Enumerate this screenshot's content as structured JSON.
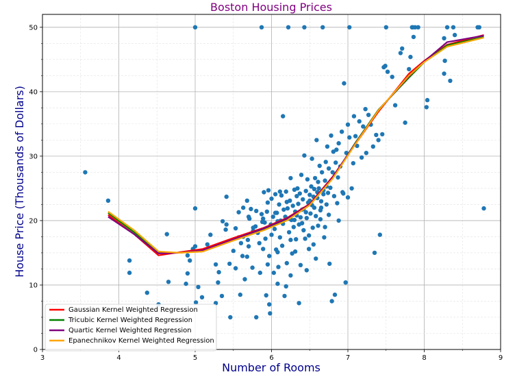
{
  "chart_data": {
    "type": "scatter",
    "title": "Boston Housing Prices",
    "xlabel": "Number of Rooms",
    "ylabel": "House Price (Thousands of Dollars)",
    "xlim": [
      3,
      9
    ],
    "ylim": [
      0,
      52
    ],
    "xticks": [
      "3",
      "4",
      "5",
      "6",
      "7",
      "8",
      "9"
    ],
    "yticks": [
      "0",
      "10",
      "20",
      "30",
      "40",
      "50"
    ],
    "grid": true,
    "legend_position": "lower-left",
    "colors": {
      "title": "#800080",
      "axis_label": "#00008b",
      "scatter": "#1f77b4"
    },
    "scatter_points": [
      [
        3.56,
        27.5
      ],
      [
        3.86,
        23.1
      ],
      [
        4.14,
        13.8
      ],
      [
        4.14,
        11.9
      ],
      [
        4.37,
        8.8
      ],
      [
        4.52,
        7.0
      ],
      [
        4.63,
        17.9
      ],
      [
        4.65,
        10.5
      ],
      [
        4.88,
        10.2
      ],
      [
        4.9,
        14.6
      ],
      [
        4.9,
        11.8
      ],
      [
        4.93,
        13.8
      ],
      [
        4.97,
        15.6
      ],
      [
        5.0,
        21.9
      ],
      [
        5.0,
        16.0
      ],
      [
        5.0,
        50.0
      ],
      [
        5.01,
        7.3
      ],
      [
        5.04,
        9.7
      ],
      [
        5.09,
        8.1
      ],
      [
        5.16,
        16.3
      ],
      [
        5.2,
        17.8
      ],
      [
        5.27,
        13.2
      ],
      [
        5.27,
        7.2
      ],
      [
        5.3,
        10.4
      ],
      [
        5.31,
        12.0
      ],
      [
        5.35,
        8.3
      ],
      [
        5.36,
        19.9
      ],
      [
        5.4,
        18.6
      ],
      [
        5.41,
        23.7
      ],
      [
        5.41,
        19.4
      ],
      [
        5.45,
        13.3
      ],
      [
        5.46,
        5.0
      ],
      [
        5.5,
        15.3
      ],
      [
        5.53,
        18.8
      ],
      [
        5.57,
        17.4
      ],
      [
        5.57,
        21.3
      ],
      [
        5.59,
        8.5
      ],
      [
        5.6,
        16.5
      ],
      [
        5.62,
        14.5
      ],
      [
        5.63,
        22.0
      ],
      [
        5.65,
        10.9
      ],
      [
        5.68,
        23.1
      ],
      [
        5.69,
        17.0
      ],
      [
        5.7,
        16.0
      ],
      [
        5.71,
        20.3
      ],
      [
        5.73,
        21.8
      ],
      [
        5.76,
        18.4
      ],
      [
        5.79,
        19.1
      ],
      [
        5.8,
        5.0
      ],
      [
        5.82,
        18.1
      ],
      [
        5.85,
        11.9
      ],
      [
        5.87,
        21.0
      ],
      [
        5.87,
        50.0
      ],
      [
        5.89,
        20.3
      ],
      [
        5.9,
        24.4
      ],
      [
        5.91,
        19.7
      ],
      [
        5.93,
        8.4
      ],
      [
        5.94,
        21.4
      ],
      [
        5.95,
        13.2
      ],
      [
        5.96,
        24.7
      ],
      [
        5.97,
        14.5
      ],
      [
        5.98,
        5.6
      ],
      [
        5.99,
        19.4
      ],
      [
        6.0,
        17.8
      ],
      [
        6.0,
        23.4
      ],
      [
        6.02,
        20.6
      ],
      [
        6.03,
        11.9
      ],
      [
        6.04,
        18.7
      ],
      [
        6.05,
        24.1
      ],
      [
        6.06,
        15.5
      ],
      [
        6.07,
        21.2
      ],
      [
        6.08,
        19.9
      ],
      [
        6.09,
        12.8
      ],
      [
        6.1,
        22.5
      ],
      [
        6.11,
        17.4
      ],
      [
        6.12,
        20.0
      ],
      [
        6.13,
        23.9
      ],
      [
        6.14,
        16.1
      ],
      [
        6.15,
        36.2
      ],
      [
        6.16,
        21.7
      ],
      [
        6.17,
        8.3
      ],
      [
        6.18,
        20.6
      ],
      [
        6.19,
        24.5
      ],
      [
        6.2,
        13.4
      ],
      [
        6.21,
        21.9
      ],
      [
        6.22,
        50.0
      ],
      [
        6.23,
        18.2
      ],
      [
        6.24,
        23.1
      ],
      [
        6.25,
        26.6
      ],
      [
        6.26,
        20.1
      ],
      [
        6.27,
        14.9
      ],
      [
        6.28,
        22.3
      ],
      [
        6.29,
        19.0
      ],
      [
        6.3,
        24.8
      ],
      [
        6.31,
        21.4
      ],
      [
        6.32,
        17.1
      ],
      [
        6.33,
        20.8
      ],
      [
        6.34,
        25.0
      ],
      [
        6.35,
        22.6
      ],
      [
        6.36,
        7.2
      ],
      [
        6.37,
        24.2
      ],
      [
        6.38,
        20.5
      ],
      [
        6.39,
        27.1
      ],
      [
        6.4,
        19.6
      ],
      [
        6.41,
        23.3
      ],
      [
        6.42,
        21.8
      ],
      [
        6.43,
        30.1
      ],
      [
        6.44,
        17.2
      ],
      [
        6.45,
        24.6
      ],
      [
        6.46,
        20.4
      ],
      [
        6.47,
        26.4
      ],
      [
        6.48,
        22.8
      ],
      [
        6.49,
        15.6
      ],
      [
        6.5,
        24.0
      ],
      [
        6.51,
        21.1
      ],
      [
        6.52,
        25.3
      ],
      [
        6.53,
        29.6
      ],
      [
        6.54,
        18.9
      ],
      [
        6.55,
        23.7
      ],
      [
        6.56,
        22.0
      ],
      [
        6.57,
        26.6
      ],
      [
        6.58,
        20.7
      ],
      [
        6.59,
        32.5
      ],
      [
        6.6,
        24.4
      ],
      [
        6.61,
        19.2
      ],
      [
        6.62,
        25.0
      ],
      [
        6.63,
        28.5
      ],
      [
        6.64,
        21.6
      ],
      [
        6.65,
        23.0
      ],
      [
        6.66,
        27.5
      ],
      [
        6.67,
        50.0
      ],
      [
        6.68,
        24.7
      ],
      [
        6.69,
        17.4
      ],
      [
        6.7,
        26.2
      ],
      [
        6.71,
        29.1
      ],
      [
        6.72,
        22.5
      ],
      [
        6.73,
        31.5
      ],
      [
        6.74,
        24.3
      ],
      [
        6.75,
        28.1
      ],
      [
        6.76,
        13.3
      ],
      [
        6.77,
        25.1
      ],
      [
        6.78,
        33.2
      ],
      [
        6.79,
        7.5
      ],
      [
        6.8,
        27.5
      ],
      [
        6.81,
        30.7
      ],
      [
        6.82,
        23.8
      ],
      [
        6.83,
        8.5
      ],
      [
        6.84,
        29.0
      ],
      [
        6.85,
        31.0
      ],
      [
        6.87,
        26.7
      ],
      [
        6.88,
        32.0
      ],
      [
        6.9,
        28.4
      ],
      [
        6.92,
        33.8
      ],
      [
        6.93,
        24.4
      ],
      [
        6.95,
        41.3
      ],
      [
        6.97,
        10.4
      ],
      [
        6.98,
        30.5
      ],
      [
        7.0,
        34.9
      ],
      [
        7.0,
        23.6
      ],
      [
        7.02,
        32.9
      ],
      [
        7.05,
        25.0
      ],
      [
        7.07,
        28.9
      ],
      [
        7.08,
        36.2
      ],
      [
        7.1,
        33.1
      ],
      [
        7.12,
        31.6
      ],
      [
        7.15,
        35.4
      ],
      [
        7.18,
        29.8
      ],
      [
        7.2,
        34.6
      ],
      [
        7.23,
        37.3
      ],
      [
        7.24,
        30.5
      ],
      [
        7.27,
        36.4
      ],
      [
        7.3,
        34.9
      ],
      [
        7.33,
        31.5
      ],
      [
        7.35,
        15.0
      ],
      [
        7.37,
        33.3
      ],
      [
        7.4,
        32.5
      ],
      [
        7.42,
        17.8
      ],
      [
        7.45,
        33.4
      ],
      [
        7.47,
        43.8
      ],
      [
        7.49,
        44.0
      ],
      [
        7.52,
        43.1
      ],
      [
        7.58,
        42.3
      ],
      [
        7.62,
        37.9
      ],
      [
        7.69,
        46.0
      ],
      [
        7.71,
        46.7
      ],
      [
        7.75,
        35.2
      ],
      [
        7.8,
        43.5
      ],
      [
        7.82,
        45.4
      ],
      [
        7.84,
        50.0
      ],
      [
        7.85,
        50.0
      ],
      [
        7.86,
        48.5
      ],
      [
        7.88,
        50.0
      ],
      [
        7.92,
        50.0
      ],
      [
        8.03,
        37.6
      ],
      [
        8.04,
        38.7
      ],
      [
        8.26,
        42.8
      ],
      [
        8.26,
        48.3
      ],
      [
        8.27,
        44.8
      ],
      [
        8.3,
        50.0
      ],
      [
        8.34,
        41.7
      ],
      [
        8.38,
        50.0
      ],
      [
        8.4,
        48.8
      ],
      [
        8.7,
        50.0
      ],
      [
        8.72,
        50.0
      ],
      [
        8.78,
        21.9
      ],
      [
        7.02,
        50.0
      ],
      [
        7.5,
        50.0
      ],
      [
        6.43,
        50.0
      ],
      [
        5.97,
        7.0
      ],
      [
        6.19,
        9.8
      ],
      [
        6.38,
        13.1
      ],
      [
        6.46,
        12.3
      ],
      [
        6.58,
        14.1
      ],
      [
        6.49,
        17.7
      ],
      [
        6.31,
        15.2
      ],
      [
        5.89,
        15.6
      ],
      [
        5.75,
        12.7
      ],
      [
        6.08,
        10.2
      ],
      [
        6.25,
        11.5
      ],
      [
        5.53,
        12.6
      ],
      [
        5.68,
        14.4
      ],
      [
        6.15,
        19.5
      ],
      [
        6.55,
        16.3
      ],
      [
        6.7,
        19.0
      ],
      [
        6.64,
        20.2
      ],
      [
        6.4,
        21.7
      ],
      [
        6.2,
        22.9
      ],
      [
        6.05,
        21.2
      ],
      [
        5.88,
        19.8
      ],
      [
        5.76,
        18.9
      ],
      [
        5.63,
        17.5
      ],
      [
        6.53,
        22.4
      ],
      [
        6.33,
        23.8
      ],
      [
        6.11,
        24.5
      ],
      [
        5.95,
        22.8
      ],
      [
        6.3,
        20.1
      ],
      [
        6.45,
        21.3
      ],
      [
        6.6,
        23.5
      ],
      [
        6.68,
        24.1
      ],
      [
        6.5,
        23.1
      ],
      [
        6.36,
        19.4
      ],
      [
        6.23,
        20.3
      ],
      [
        5.8,
        21.5
      ],
      [
        5.7,
        20.6
      ],
      [
        6.42,
        18.5
      ],
      [
        6.25,
        17.0
      ],
      [
        6.08,
        15.1
      ],
      [
        5.92,
        17.2
      ],
      [
        5.84,
        16.5
      ],
      [
        6.61,
        26.0
      ],
      [
        6.72,
        25.3
      ],
      [
        6.56,
        24.9
      ],
      [
        6.88,
        20.0
      ],
      [
        6.94,
        24.2
      ],
      [
        6.86,
        22.7
      ],
      [
        6.65,
        22.0
      ],
      [
        6.75,
        20.9
      ]
    ],
    "series": [
      {
        "name": "Gaussian Kernel Weighted Regression",
        "color": "#ff0000",
        "x": [
          3.86,
          4.2,
          4.52,
          4.8,
          5.1,
          5.5,
          5.9,
          6.2,
          6.5,
          6.8,
          7.1,
          7.4,
          7.8,
          8.0,
          8.3,
          8.78
        ],
        "y": [
          20.9,
          17.9,
          14.6,
          15.1,
          15.6,
          17.3,
          18.9,
          20.4,
          22.6,
          26.8,
          31.9,
          36.9,
          42.8,
          44.8,
          47.3,
          48.8
        ]
      },
      {
        "name": "Tricubic Kernel Weighted Regression",
        "color": "#008000",
        "x": [
          3.86,
          4.2,
          4.52,
          4.8,
          5.1,
          5.5,
          5.9,
          6.2,
          6.5,
          6.8,
          7.1,
          7.4,
          7.8,
          8.0,
          8.3,
          8.78
        ],
        "y": [
          21.2,
          18.2,
          15.1,
          15.0,
          15.3,
          17.0,
          18.7,
          20.2,
          22.5,
          26.6,
          32.1,
          37.2,
          42.2,
          44.6,
          47.2,
          48.5
        ]
      },
      {
        "name": "Quartic Kernel Weighted Regression",
        "color": "#800080",
        "x": [
          3.86,
          4.2,
          4.52,
          4.8,
          5.1,
          5.5,
          5.9,
          6.2,
          6.5,
          6.8,
          7.1,
          7.4,
          7.8,
          8.0,
          8.3,
          8.78
        ],
        "y": [
          20.6,
          17.9,
          14.9,
          15.0,
          15.4,
          17.1,
          18.8,
          20.3,
          22.5,
          26.7,
          32.0,
          37.1,
          42.4,
          44.7,
          47.7,
          48.7
        ]
      },
      {
        "name": "Epanechnikov Kernel Weighted Regression",
        "color": "#ffa500",
        "x": [
          3.86,
          4.2,
          4.52,
          4.8,
          5.1,
          5.5,
          5.9,
          6.2,
          6.5,
          6.8,
          7.1,
          7.4,
          7.8,
          8.0,
          8.3,
          8.78
        ],
        "y": [
          21.4,
          18.5,
          15.2,
          15.0,
          15.2,
          16.9,
          18.5,
          20.0,
          22.4,
          26.5,
          31.9,
          37.1,
          42.5,
          44.6,
          47.0,
          48.4
        ]
      }
    ]
  }
}
